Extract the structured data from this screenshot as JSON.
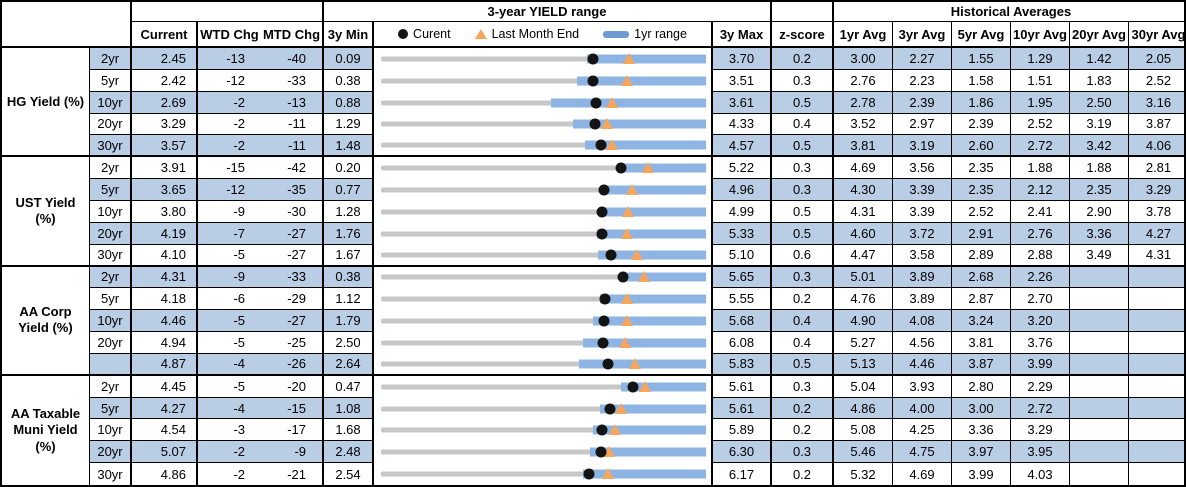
{
  "header": {
    "chart_group_title": "3-year YIELD range",
    "hist_group_title": "Historical Averages",
    "current": "Current",
    "wtd": "WTD Chg",
    "mtd": "MTD Chg",
    "min3y": "3y Min",
    "max3y": "3y Max",
    "zscore": "z-score",
    "avg_cols": [
      "1yr Avg",
      "3yr Avg",
      "5yr Avg",
      "10yr Avg",
      "20yr Avg",
      "30yr Avg"
    ],
    "legend": {
      "current": "Curent",
      "last_month": "Last Month End",
      "range": "1yr range"
    }
  },
  "colors": {
    "stripe_blue": "#B9CDE4",
    "bar_blue": "#8DB4E2",
    "track_gray": "#C7C7C7",
    "marker_black": "#141414",
    "triangle_orange": "#F5A55C",
    "border_black": "#000000"
  },
  "chart_data": {
    "type": "bullet",
    "note": "Each row is a range chart scaled from 3y Min to 3y Max; black dot = Curent, orange triangle = Last Month End, blue bar = 1yr range (low/high estimated from pixels).",
    "legend_entries": [
      "Curent",
      "Last Month End",
      "1yr range"
    ],
    "groups": [
      {
        "label": "HG Yield (%)",
        "rows": [
          {
            "tenor": "2yr",
            "current": "2.45",
            "wtd_chg": "-13",
            "mtd_chg": "-40",
            "min_3y": "0.09",
            "max_3y": "3.70",
            "z_score": "0.2",
            "avgs": [
              "3.00",
              "2.27",
              "1.55",
              "1.29",
              "1.42",
              "2.05"
            ],
            "last_month_end": 2.85,
            "range_1yr_low": 2.38,
            "range_1yr_high": 3.7
          },
          {
            "tenor": "5yr",
            "current": "2.42",
            "wtd_chg": "-12",
            "mtd_chg": "-33",
            "min_3y": "0.38",
            "max_3y": "3.51",
            "z_score": "0.3",
            "avgs": [
              "2.76",
              "2.23",
              "1.58",
              "1.51",
              "1.83",
              "2.52"
            ],
            "last_month_end": 2.75,
            "range_1yr_low": 2.27,
            "range_1yr_high": 3.51
          },
          {
            "tenor": "10yr",
            "current": "2.69",
            "wtd_chg": "-2",
            "mtd_chg": "-13",
            "min_3y": "0.88",
            "max_3y": "3.61",
            "z_score": "0.5",
            "avgs": [
              "2.78",
              "2.39",
              "1.86",
              "1.95",
              "2.50",
              "3.16"
            ],
            "last_month_end": 2.82,
            "range_1yr_low": 2.31,
            "range_1yr_high": 3.61
          },
          {
            "tenor": "20yr",
            "current": "3.29",
            "wtd_chg": "-2",
            "mtd_chg": "-11",
            "min_3y": "1.29",
            "max_3y": "4.33",
            "z_score": "0.4",
            "avgs": [
              "3.52",
              "2.97",
              "2.39",
              "2.52",
              "3.19",
              "3.87"
            ],
            "last_month_end": 3.4,
            "range_1yr_low": 3.09,
            "range_1yr_high": 4.33
          },
          {
            "tenor": "30yr",
            "current": "3.57",
            "wtd_chg": "-2",
            "mtd_chg": "-11",
            "min_3y": "1.48",
            "max_3y": "4.57",
            "z_score": "0.5",
            "avgs": [
              "3.81",
              "3.19",
              "2.60",
              "2.72",
              "3.42",
              "4.06"
            ],
            "last_month_end": 3.68,
            "range_1yr_low": 3.42,
            "range_1yr_high": 4.57
          }
        ]
      },
      {
        "label": "UST Yield (%)",
        "rows": [
          {
            "tenor": "2yr",
            "current": "3.91",
            "wtd_chg": "-15",
            "mtd_chg": "-42",
            "min_3y": "0.20",
            "max_3y": "5.22",
            "z_score": "0.3",
            "avgs": [
              "4.69",
              "3.56",
              "2.35",
              "1.88",
              "1.88",
              "2.81"
            ],
            "last_month_end": 4.33,
            "range_1yr_low": 3.85,
            "range_1yr_high": 5.22
          },
          {
            "tenor": "5yr",
            "current": "3.65",
            "wtd_chg": "-12",
            "mtd_chg": "-35",
            "min_3y": "0.77",
            "max_3y": "4.96",
            "z_score": "0.3",
            "avgs": [
              "4.30",
              "3.39",
              "2.35",
              "2.12",
              "2.35",
              "3.29"
            ],
            "last_month_end": 4.0,
            "range_1yr_low": 3.63,
            "range_1yr_high": 4.96
          },
          {
            "tenor": "10yr",
            "current": "3.80",
            "wtd_chg": "-9",
            "mtd_chg": "-30",
            "min_3y": "1.28",
            "max_3y": "4.99",
            "z_score": "0.5",
            "avgs": [
              "4.31",
              "3.39",
              "2.52",
              "2.41",
              "2.90",
              "3.78"
            ],
            "last_month_end": 4.1,
            "range_1yr_low": 3.78,
            "range_1yr_high": 4.99
          },
          {
            "tenor": "20yr",
            "current": "4.19",
            "wtd_chg": "-7",
            "mtd_chg": "-27",
            "min_3y": "1.76",
            "max_3y": "5.33",
            "z_score": "0.5",
            "avgs": [
              "4.60",
              "3.72",
              "2.91",
              "2.76",
              "3.36",
              "4.27"
            ],
            "last_month_end": 4.46,
            "range_1yr_low": 4.13,
            "range_1yr_high": 5.33
          },
          {
            "tenor": "30yr",
            "current": "4.10",
            "wtd_chg": "-5",
            "mtd_chg": "-27",
            "min_3y": "1.67",
            "max_3y": "5.10",
            "z_score": "0.6",
            "avgs": [
              "4.47",
              "3.58",
              "2.89",
              "2.88",
              "3.49",
              "4.31"
            ],
            "last_month_end": 4.37,
            "range_1yr_low": 3.96,
            "range_1yr_high": 5.1
          }
        ]
      },
      {
        "label": "AA Corp Yield (%)",
        "rows": [
          {
            "tenor": "2yr",
            "current": "4.31",
            "wtd_chg": "-9",
            "mtd_chg": "-33",
            "min_3y": "0.38",
            "max_3y": "5.65",
            "z_score": "0.3",
            "avgs": [
              "5.01",
              "3.89",
              "2.68",
              "2.26",
              "",
              ""
            ],
            "last_month_end": 4.64,
            "range_1yr_low": 4.27,
            "range_1yr_high": 5.65
          },
          {
            "tenor": "5yr",
            "current": "4.18",
            "wtd_chg": "-6",
            "mtd_chg": "-29",
            "min_3y": "1.12",
            "max_3y": "5.55",
            "z_score": "0.2",
            "avgs": [
              "4.76",
              "3.89",
              "2.87",
              "2.70",
              "",
              ""
            ],
            "last_month_end": 4.47,
            "range_1yr_low": 4.1,
            "range_1yr_high": 5.55
          },
          {
            "tenor": "10yr",
            "current": "4.46",
            "wtd_chg": "-5",
            "mtd_chg": "-27",
            "min_3y": "1.79",
            "max_3y": "5.68",
            "z_score": "0.4",
            "avgs": [
              "4.90",
              "4.08",
              "3.24",
              "3.20",
              "",
              ""
            ],
            "last_month_end": 4.73,
            "range_1yr_low": 4.33,
            "range_1yr_high": 5.68
          },
          {
            "tenor": "20yr",
            "current": "4.94",
            "wtd_chg": "-5",
            "mtd_chg": "-25",
            "min_3y": "2.50",
            "max_3y": "6.08",
            "z_score": "0.4",
            "avgs": [
              "5.27",
              "4.56",
              "3.81",
              "3.76",
              "",
              ""
            ],
            "last_month_end": 5.19,
            "range_1yr_low": 4.72,
            "range_1yr_high": 6.08
          },
          {
            "tenor": "",
            "current": "4.87",
            "wtd_chg": "-4",
            "mtd_chg": "-26",
            "min_3y": "2.64",
            "max_3y": "5.83",
            "z_score": "0.5",
            "avgs": [
              "5.13",
              "4.46",
              "3.87",
              "3.99",
              "",
              ""
            ],
            "last_month_end": 5.13,
            "range_1yr_low": 4.58,
            "range_1yr_high": 5.83
          }
        ]
      },
      {
        "label": "AA Taxable Muni Yield (%)",
        "rows": [
          {
            "tenor": "2yr",
            "current": "4.45",
            "wtd_chg": "-5",
            "mtd_chg": "-20",
            "min_3y": "0.47",
            "max_3y": "5.61",
            "z_score": "0.3",
            "avgs": [
              "5.04",
              "3.93",
              "2.80",
              "2.29",
              "",
              ""
            ],
            "last_month_end": 4.65,
            "range_1yr_low": 4.27,
            "range_1yr_high": 5.61
          },
          {
            "tenor": "5yr",
            "current": "4.27",
            "wtd_chg": "-4",
            "mtd_chg": "-15",
            "min_3y": "1.08",
            "max_3y": "5.61",
            "z_score": "0.2",
            "avgs": [
              "4.86",
              "4.00",
              "3.00",
              "2.72",
              "",
              ""
            ],
            "last_month_end": 4.42,
            "range_1yr_low": 4.13,
            "range_1yr_high": 5.61
          },
          {
            "tenor": "10yr",
            "current": "4.54",
            "wtd_chg": "-3",
            "mtd_chg": "-17",
            "min_3y": "1.68",
            "max_3y": "5.89",
            "z_score": "0.2",
            "avgs": [
              "5.08",
              "4.25",
              "3.36",
              "3.29",
              "",
              ""
            ],
            "last_month_end": 4.71,
            "range_1yr_low": 4.43,
            "range_1yr_high": 5.89
          },
          {
            "tenor": "20yr",
            "current": "5.07",
            "wtd_chg": "-2",
            "mtd_chg": "-9",
            "min_3y": "2.48",
            "max_3y": "6.30",
            "z_score": "0.3",
            "avgs": [
              "5.46",
              "4.75",
              "3.97",
              "3.95",
              "",
              ""
            ],
            "last_month_end": 5.16,
            "range_1yr_low": 4.94,
            "range_1yr_high": 6.3
          },
          {
            "tenor": "30yr",
            "current": "4.86",
            "wtd_chg": "-2",
            "mtd_chg": "-21",
            "min_3y": "2.54",
            "max_3y": "6.17",
            "z_score": "0.2",
            "avgs": [
              "5.32",
              "4.69",
              "3.99",
              "4.03",
              "",
              ""
            ],
            "last_month_end": 5.07,
            "range_1yr_low": 4.8,
            "range_1yr_high": 6.17
          }
        ]
      }
    ]
  }
}
